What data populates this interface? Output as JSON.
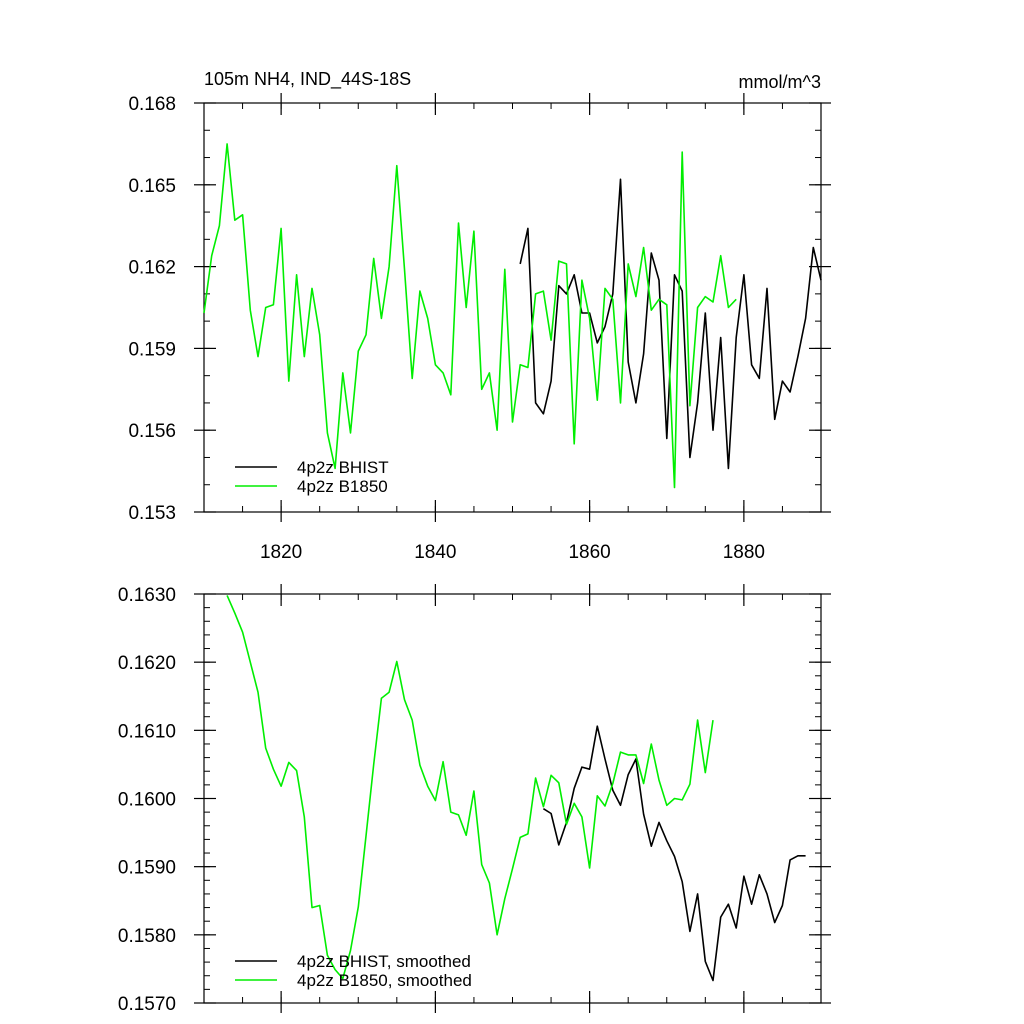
{
  "chart_data": [
    {
      "type": "line",
      "title": "105m NH4, IND_44S-18S",
      "units": "mmol/m^3",
      "xlim": [
        1810,
        1890
      ],
      "ylim": [
        0.153,
        0.168
      ],
      "xticks": [
        1820,
        1840,
        1860,
        1880
      ],
      "xticks_minor_step": 5,
      "yticks": [
        0.153,
        0.156,
        0.159,
        0.162,
        0.165,
        0.168
      ],
      "yticks_minor_step": 0.001,
      "ytick_decimals": 3,
      "show_xtick_labels": true,
      "legend_position": "bottom-left",
      "series": [
        {
          "name": "4p2z BHIST",
          "color": "#000000",
          "x": [
            1851,
            1852,
            1853,
            1854,
            1855,
            1856,
            1857,
            1858,
            1859,
            1860,
            1861,
            1862,
            1863,
            1864,
            1865,
            1866,
            1867,
            1868,
            1869,
            1870,
            1871,
            1872,
            1873,
            1874,
            1875,
            1876,
            1877,
            1878,
            1879,
            1880,
            1881,
            1882,
            1883,
            1884,
            1885,
            1886,
            1887,
            1888,
            1889,
            1890
          ],
          "y": [
            0.1621,
            0.1634,
            0.157,
            0.1566,
            0.1578,
            0.1613,
            0.161,
            0.1617,
            0.1603,
            0.1603,
            0.1592,
            0.1598,
            0.161,
            0.1652,
            0.1585,
            0.157,
            0.1588,
            0.1625,
            0.1615,
            0.1557,
            0.1617,
            0.1611,
            0.155,
            0.157,
            0.1603,
            0.156,
            0.1594,
            0.1546,
            0.1594,
            0.1617,
            0.1584,
            0.1579,
            0.1612,
            0.1564,
            0.1578,
            0.1574,
            0.1587,
            0.1601,
            0.1627,
            0.1615
          ]
        },
        {
          "name": "4p2z B1850",
          "color": "#00ee00",
          "x": [
            1810,
            1811,
            1812,
            1813,
            1814,
            1815,
            1816,
            1817,
            1818,
            1819,
            1820,
            1821,
            1822,
            1823,
            1824,
            1825,
            1826,
            1827,
            1828,
            1829,
            1830,
            1831,
            1832,
            1833,
            1834,
            1835,
            1836,
            1837,
            1838,
            1839,
            1840,
            1841,
            1842,
            1843,
            1844,
            1845,
            1846,
            1847,
            1848,
            1849,
            1850,
            1851,
            1852,
            1853,
            1854,
            1855,
            1856,
            1857,
            1858,
            1859,
            1860,
            1861,
            1862,
            1863,
            1864,
            1865,
            1866,
            1867,
            1868,
            1869,
            1870,
            1871,
            1872,
            1873,
            1874,
            1875,
            1876,
            1877,
            1878,
            1879
          ],
          "y": [
            0.1603,
            0.1624,
            0.1635,
            0.1665,
            0.1637,
            0.1639,
            0.1604,
            0.1587,
            0.1605,
            0.1606,
            0.1634,
            0.1578,
            0.1617,
            0.1587,
            0.1612,
            0.1595,
            0.1559,
            0.1546,
            0.1581,
            0.1559,
            0.1589,
            0.1595,
            0.1623,
            0.1601,
            0.162,
            0.1657,
            0.1619,
            0.1579,
            0.1611,
            0.1601,
            0.1584,
            0.1581,
            0.1573,
            0.1636,
            0.1605,
            0.1633,
            0.1575,
            0.1581,
            0.156,
            0.1619,
            0.1563,
            0.1584,
            0.1583,
            0.161,
            0.1611,
            0.1593,
            0.1622,
            0.1621,
            0.1555,
            0.1615,
            0.1601,
            0.1571,
            0.1612,
            0.1608,
            0.157,
            0.1621,
            0.1609,
            0.1627,
            0.1604,
            0.1608,
            0.1606,
            0.1539,
            0.1662,
            0.1569,
            0.1605,
            0.1609,
            0.1607,
            0.1624,
            0.1605,
            0.1608
          ]
        }
      ],
      "legend_extra": [
        {
          "x": 1879,
          "y": 0.1623
        }
      ]
    },
    {
      "type": "line",
      "xlim": [
        1810,
        1890
      ],
      "ylim": [
        0.157,
        0.163
      ],
      "xticks": [
        1820,
        1840,
        1860,
        1880
      ],
      "xticks_minor_step": 5,
      "yticks": [
        0.157,
        0.158,
        0.159,
        0.16,
        0.161,
        0.162,
        0.163
      ],
      "yticks_minor_step": 0.0002,
      "ytick_decimals": 4,
      "show_xtick_labels": false,
      "legend_position": "bottom-left",
      "series": [
        {
          "name": "4p2z BHIST, smoothed",
          "color": "#000000",
          "x": [
            1854,
            1855,
            1856,
            1857,
            1858,
            1859,
            1860,
            1861,
            1862,
            1863,
            1864,
            1865,
            1866,
            1867,
            1868,
            1869,
            1870,
            1871,
            1872,
            1873,
            1874,
            1875,
            1876,
            1877,
            1878,
            1879,
            1880,
            1881,
            1882,
            1883,
            1884,
            1885,
            1886,
            1887,
            1888
          ],
          "y": [
            0.15985,
            0.15978,
            0.15932,
            0.15965,
            0.16015,
            0.16046,
            0.16043,
            0.16106,
            0.16058,
            0.16012,
            0.1599,
            0.16035,
            0.16058,
            0.15977,
            0.1593,
            0.15965,
            0.15938,
            0.15915,
            0.15878,
            0.15805,
            0.1586,
            0.15761,
            0.15733,
            0.15826,
            0.15845,
            0.1581,
            0.15886,
            0.15845,
            0.15888,
            0.1586,
            0.15818,
            0.15843,
            0.1591,
            0.15916,
            0.15916
          ]
        },
        {
          "name": "4p2z B1850, smoothed",
          "color": "#00ee00",
          "x": [
            1813,
            1814,
            1815,
            1816,
            1817,
            1818,
            1819,
            1820,
            1821,
            1822,
            1823,
            1824,
            1825,
            1826,
            1827,
            1828,
            1829,
            1830,
            1831,
            1832,
            1833,
            1834,
            1835,
            1836,
            1837,
            1838,
            1839,
            1840,
            1841,
            1842,
            1843,
            1844,
            1845,
            1846,
            1847,
            1848,
            1849,
            1850,
            1851,
            1852,
            1853,
            1854,
            1855,
            1856,
            1857,
            1858,
            1859,
            1860,
            1861,
            1862,
            1863,
            1864,
            1865,
            1866,
            1867,
            1868,
            1869,
            1870,
            1871,
            1872,
            1873,
            1874,
            1875,
            1876
          ],
          "y": [
            0.16298,
            0.16272,
            0.16244,
            0.162,
            0.16156,
            0.16074,
            0.16043,
            0.16018,
            0.16053,
            0.16041,
            0.15973,
            0.1584,
            0.15843,
            0.1577,
            0.15749,
            0.15736,
            0.15777,
            0.15841,
            0.15945,
            0.1605,
            0.16147,
            0.16156,
            0.16201,
            0.16145,
            0.16115,
            0.16049,
            0.16018,
            0.15997,
            0.16054,
            0.1598,
            0.15976,
            0.15946,
            0.16011,
            0.15903,
            0.15876,
            0.158,
            0.15853,
            0.15897,
            0.15943,
            0.15948,
            0.1603,
            0.15988,
            0.16034,
            0.16023,
            0.15962,
            0.15993,
            0.15973,
            0.15898,
            0.16004,
            0.15989,
            0.16022,
            0.16068,
            0.16064,
            0.16064,
            0.16022,
            0.1608,
            0.16027,
            0.1599,
            0.16,
            0.15998,
            0.16021,
            0.16115,
            0.16038,
            0.16115
          ]
        }
      ]
    }
  ]
}
